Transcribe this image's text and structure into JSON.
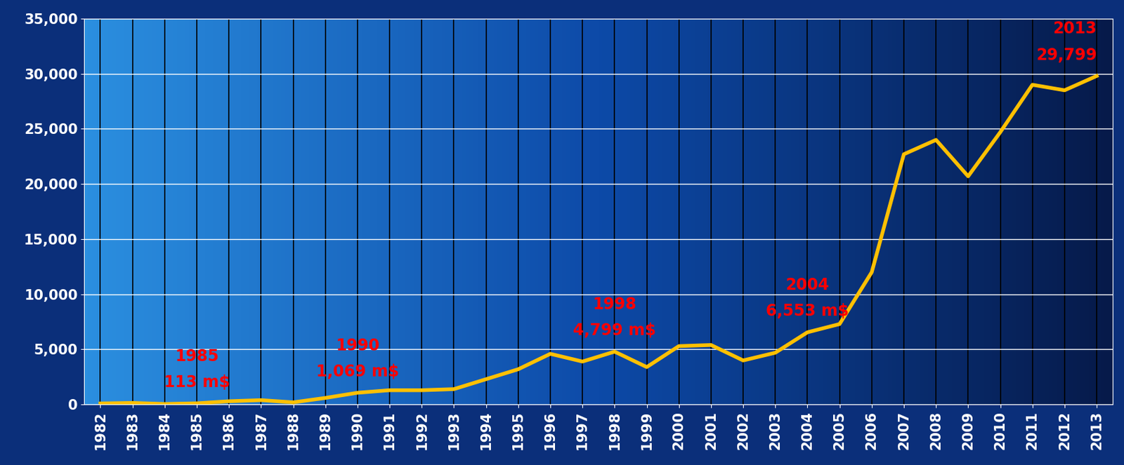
{
  "chart_data": {
    "type": "line",
    "categories": [
      "1982",
      "1983",
      "1984",
      "1985",
      "1986",
      "1987",
      "1988",
      "1989",
      "1990",
      "1991",
      "1992",
      "1993",
      "1994",
      "1995",
      "1996",
      "1997",
      "1998",
      "1999",
      "2000",
      "2001",
      "2002",
      "2003",
      "2004",
      "2005",
      "2006",
      "2007",
      "2008",
      "2009",
      "2010",
      "2011",
      "2012",
      "2013"
    ],
    "values": [
      100,
      150,
      50,
      113,
      300,
      400,
      200,
      600,
      1069,
      1300,
      1300,
      1400,
      2300,
      3200,
      4600,
      3900,
      4799,
      3400,
      5300,
      5400,
      4000,
      4700,
      6553,
      7300,
      12000,
      22700,
      24000,
      20700,
      24700,
      29000,
      28500,
      29799
    ],
    "color": "#ffc000",
    "ylim": [
      0,
      35000
    ],
    "yticks": [
      0,
      {
        "value": 5000,
        "label": "5,000"
      },
      {
        "value": 10000,
        "label": "10,000"
      },
      {
        "value": 15000,
        "label": "15,000"
      },
      {
        "value": 20000,
        "label": "20,000"
      },
      {
        "value": 25000,
        "label": "25,000"
      },
      {
        "value": 30000,
        "label": "30,000"
      },
      {
        "value": 35000,
        "label": "35,000"
      }
    ],
    "grid": true,
    "annotations": [
      {
        "category": "1985",
        "lines": [
          "1985",
          "113 m$"
        ],
        "color": "#ff0000"
      },
      {
        "category": "1990",
        "lines": [
          "1990",
          "1,069 m$"
        ],
        "color": "#ff0000"
      },
      {
        "category": "1998",
        "lines": [
          "1998",
          "4,799 m$"
        ],
        "color": "#ff0000"
      },
      {
        "category": "2004",
        "lines": [
          "2004",
          "6,553 m$"
        ],
        "color": "#ff0000"
      },
      {
        "category": "2013",
        "lines": [
          "2013",
          "29,799"
        ],
        "color": "#ff0000"
      }
    ]
  }
}
